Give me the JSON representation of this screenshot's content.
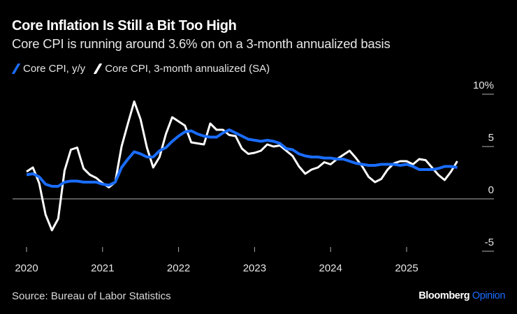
{
  "title": "Core Inflation Is Still a Bit Too High",
  "subtitle": "Core CPI is running around 3.6% on on a 3-month annualized basis",
  "source": "Source: Bureau of Labor Statistics",
  "logo": {
    "brand": "Bloomberg",
    "section": "Opinion"
  },
  "colors": {
    "yoy": "#1a6dff",
    "annualized": "#ffffff",
    "background": "#000000"
  },
  "chart_data": {
    "type": "line",
    "x_start": "2020-01",
    "x_frequency": "monthly",
    "xticks": [
      "2020",
      "2021",
      "2022",
      "2023",
      "2024",
      "2025"
    ],
    "yticks": [
      {
        "value": 10,
        "label": "10%"
      },
      {
        "value": 5,
        "label": "5"
      },
      {
        "value": 0,
        "label": "0"
      },
      {
        "value": -5,
        "label": "-5"
      }
    ],
    "ylim": [
      -5,
      10
    ],
    "grid": false,
    "legend_placement": "top-left",
    "series": [
      {
        "name": "Core CPI, y/y",
        "color": "#1a6dff",
        "values": [
          2.3,
          2.4,
          2.1,
          1.4,
          1.2,
          1.2,
          1.6,
          1.7,
          1.7,
          1.6,
          1.6,
          1.6,
          1.4,
          1.3,
          1.6,
          3.0,
          3.8,
          4.5,
          4.3,
          4.0,
          4.0,
          4.6,
          4.9,
          5.5,
          6.0,
          6.4,
          6.5,
          6.2,
          6.0,
          5.9,
          5.9,
          6.3,
          6.6,
          6.3,
          6.0,
          5.7,
          5.6,
          5.5,
          5.6,
          5.5,
          5.3,
          4.8,
          4.7,
          4.3,
          4.1,
          4.0,
          4.0,
          3.9,
          3.9,
          3.8,
          3.8,
          3.6,
          3.4,
          3.3,
          3.2,
          3.2,
          3.3,
          3.3,
          3.3,
          3.2,
          3.3,
          3.1,
          2.8,
          2.8,
          2.8,
          2.9,
          3.1,
          3.1,
          3.0
        ]
      },
      {
        "name": "Core CPI, 3-month annualized (SA)",
        "color": "#ffffff",
        "values": [
          2.6,
          3.0,
          1.5,
          -1.5,
          -3.0,
          -1.9,
          2.7,
          4.7,
          4.9,
          2.9,
          2.3,
          2.0,
          1.5,
          1.1,
          1.6,
          5.0,
          7.2,
          9.3,
          7.6,
          4.9,
          3.0,
          4.0,
          6.2,
          7.8,
          7.4,
          7.0,
          5.4,
          5.3,
          5.2,
          7.2,
          6.6,
          6.6,
          6.1,
          6.0,
          4.8,
          4.3,
          4.4,
          4.6,
          5.2,
          5.0,
          5.1,
          4.6,
          4.1,
          3.1,
          2.4,
          2.8,
          3.0,
          3.5,
          3.3,
          3.8,
          4.2,
          4.6,
          3.9,
          3.1,
          2.1,
          1.6,
          1.9,
          2.8,
          3.4,
          3.6,
          3.6,
          3.3,
          3.8,
          3.7,
          3.0,
          2.3,
          1.8,
          2.6,
          3.6
        ]
      }
    ]
  }
}
